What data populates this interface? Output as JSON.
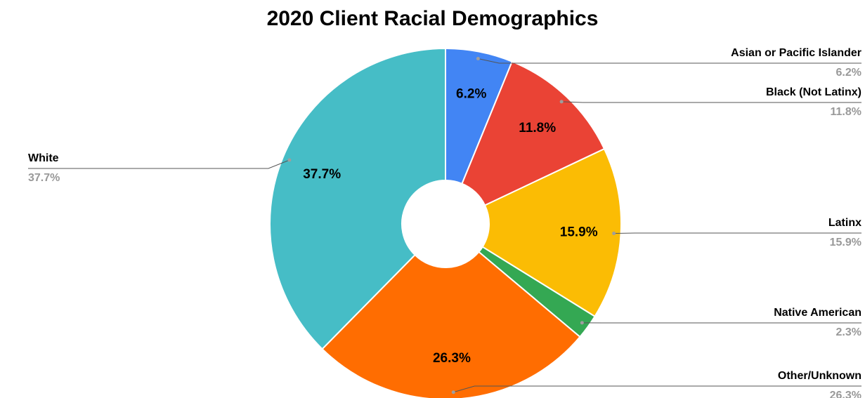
{
  "chart_data": {
    "type": "pie",
    "title": "2020 Client Racial Demographics",
    "donut": true,
    "slices": [
      {
        "name": "Asian or Pacific Islander",
        "value": 6.2,
        "label": "6.2%",
        "color": "#4285f4"
      },
      {
        "name": "Black (Not Latinx)",
        "value": 11.8,
        "label": "11.8%",
        "color": "#ea4335"
      },
      {
        "name": "Latinx",
        "value": 15.9,
        "label": "15.9%",
        "color": "#fbbc04"
      },
      {
        "name": "Native American",
        "value": 2.3,
        "label": "2.3%",
        "color": "#34a853"
      },
      {
        "name": "Other/Unknown",
        "value": 26.3,
        "label": "26.3%",
        "color": "#ff6d01"
      },
      {
        "name": "White",
        "value": 37.7,
        "label": "37.7%",
        "color": "#46bdc6"
      }
    ]
  }
}
